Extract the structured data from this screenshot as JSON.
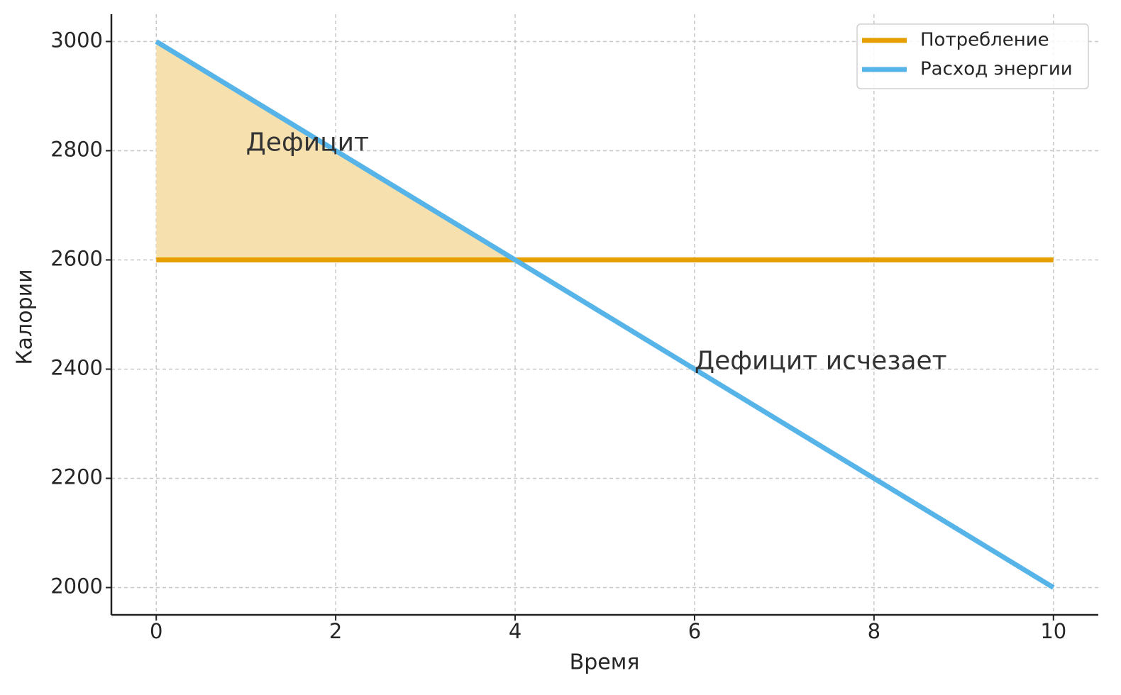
{
  "chart_data": {
    "type": "line",
    "xlabel": "Время",
    "ylabel": "Калории",
    "x": [
      0,
      1,
      2,
      3,
      4,
      5,
      6,
      7,
      8,
      9,
      10
    ],
    "series": [
      {
        "name": "Потребление",
        "color": "#e69f00",
        "values": [
          2600,
          2600,
          2600,
          2600,
          2600,
          2600,
          2600,
          2600,
          2600,
          2600,
          2600
        ]
      },
      {
        "name": "Расход энергии",
        "color": "#56b4e9",
        "values": [
          3000,
          2900,
          2800,
          2700,
          2600,
          2500,
          2400,
          2300,
          2200,
          2100,
          2000
        ]
      }
    ],
    "fill_color": "#f6e0ad",
    "annotations": [
      {
        "text": "Дефицит",
        "x": 1,
        "y": 2800
      },
      {
        "text": "Дефицит исчезает",
        "x": 6,
        "y": 2400
      }
    ],
    "xlim": [
      -0.5,
      10.5
    ],
    "xticks": [
      0,
      2,
      4,
      6,
      8,
      10
    ],
    "ylim": [
      1950,
      3050
    ],
    "yticks": [
      2000,
      2200,
      2400,
      2600,
      2800,
      3000
    ],
    "grid": true,
    "legend": "upper right"
  }
}
